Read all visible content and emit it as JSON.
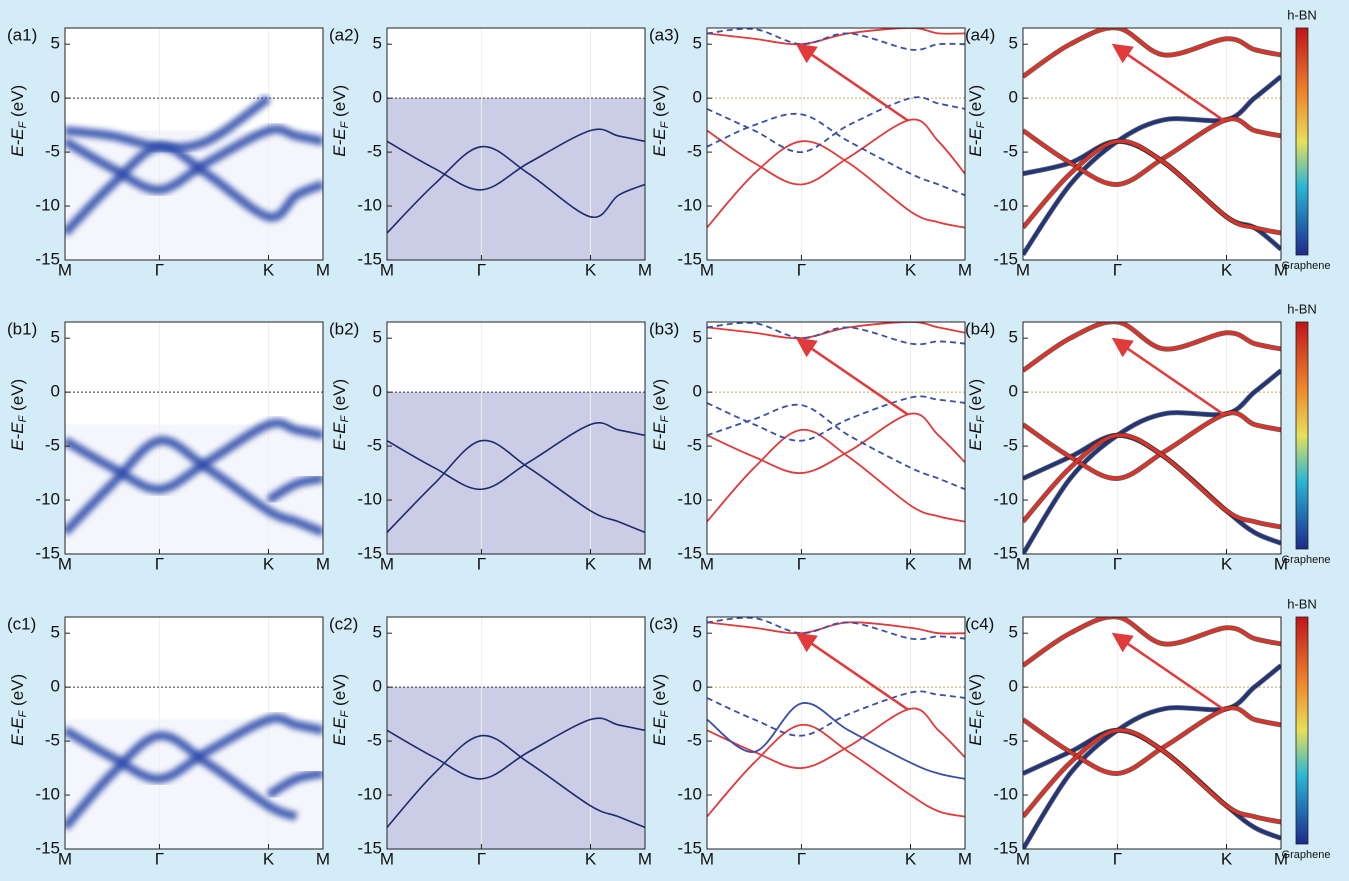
{
  "chart_data": [
    {
      "type": "spectral",
      "label": "(a1)",
      "ylabel": {
        "main": "E-E",
        "sub": "F",
        "unit": " (eV)"
      },
      "x": [
        0,
        0.5,
        1,
        1.5,
        2.155,
        2.45,
        2.732
      ],
      "xlim": [
        0,
        2.732
      ],
      "xticks": [
        {
          "value": 0,
          "label": "M"
        },
        {
          "value": 1,
          "label": "Γ"
        },
        {
          "value": 2.155,
          "label": "K"
        },
        {
          "value": 2.732,
          "label": "M"
        }
      ],
      "ylim": [
        -15,
        6.5
      ],
      "yticks": [
        5,
        0,
        -5,
        -10,
        -15
      ],
      "hline": 0,
      "series": [
        {
          "color": "#2c4aa8",
          "values": [
            -4,
            -6.5,
            -8.5,
            -6,
            -3,
            -3.5,
            -4
          ]
        },
        {
          "color": "#2c4aa8",
          "values": [
            -12.5,
            -8,
            -4.5,
            -7,
            -11,
            -9,
            -8
          ]
        },
        {
          "color": "#2c4aa8",
          "values": [
            -3,
            -3.5,
            -4.5,
            -4,
            0,
            null,
            null
          ]
        }
      ]
    },
    {
      "type": "derivative",
      "label": "(a2)",
      "ylabel": {
        "main": "E-E",
        "sub": "F",
        "unit": " (eV)"
      },
      "x": [
        0,
        0.5,
        1,
        1.5,
        2.155,
        2.45,
        2.732
      ],
      "xlim": [
        0,
        2.732
      ],
      "xticks": [
        {
          "value": 0,
          "label": "M"
        },
        {
          "value": 1,
          "label": "Γ"
        },
        {
          "value": 2.155,
          "label": "K"
        },
        {
          "value": 2.732,
          "label": "M"
        }
      ],
      "ylim": [
        -15,
        6.5
      ],
      "yticks": [
        5,
        0,
        -5,
        -10,
        -15
      ],
      "hline": 0,
      "series": [
        {
          "color": "#1e2a6e",
          "values": [
            -4,
            -6.5,
            -8.5,
            -6,
            -3,
            -3.5,
            -4
          ]
        },
        {
          "color": "#1e2a6e",
          "values": [
            -12.5,
            -8,
            -4.5,
            -7,
            -11,
            -9,
            -8
          ]
        }
      ]
    },
    {
      "type": "line",
      "label": "(a3)",
      "ylabel": {
        "main": "E-E",
        "sub": "F",
        "unit": " (eV)"
      },
      "x": [
        0,
        0.5,
        1,
        1.5,
        2.155,
        2.45,
        2.732
      ],
      "xlim": [
        0,
        2.732
      ],
      "xticks": [
        {
          "value": 0,
          "label": "M"
        },
        {
          "value": 1,
          "label": "Γ"
        },
        {
          "value": 2.155,
          "label": "K"
        },
        {
          "value": 2.732,
          "label": "M"
        }
      ],
      "ylim": [
        -15,
        6.5
      ],
      "yticks": [
        5,
        0,
        -5,
        -10,
        -15
      ],
      "hline": 0,
      "series": [
        {
          "color": "#e03a3a",
          "values": [
            -3,
            -6,
            -8,
            -5.5,
            -2,
            -4,
            -7
          ]
        },
        {
          "color": "#e03a3a",
          "values": [
            -12,
            -7,
            -4,
            -6,
            -10.5,
            -11.5,
            -12
          ]
        },
        {
          "color": "#e03a3a",
          "values": [
            6,
            5.5,
            5,
            6,
            6.5,
            6,
            6
          ]
        },
        {
          "color": "#3a4fa8",
          "dash": true,
          "values": [
            -1,
            -3,
            -5,
            -2.5,
            0,
            -0.5,
            -1
          ]
        },
        {
          "color": "#3a4fa8",
          "dash": true,
          "values": [
            -4.5,
            -2.5,
            -1.5,
            -4,
            -7,
            -8,
            -9
          ]
        },
        {
          "color": "#3a4fa8",
          "dash": true,
          "values": [
            6,
            6.4,
            5,
            6,
            4.5,
            5,
            5
          ]
        }
      ]
    },
    {
      "type": "line",
      "label": "(a4)",
      "ylabel": {
        "main": "E-E",
        "sub": "F",
        "unit": " (eV)"
      },
      "x": [
        0,
        0.5,
        1,
        1.5,
        2.155,
        2.45,
        2.732
      ],
      "xlim": [
        0,
        2.732
      ],
      "xticks": [
        {
          "value": 0,
          "label": "M"
        },
        {
          "value": 1,
          "label": "Γ"
        },
        {
          "value": 2.155,
          "label": "K"
        },
        {
          "value": 2.732,
          "label": "M"
        }
      ],
      "ylim": [
        -15,
        6.5
      ],
      "yticks": [
        5,
        0,
        -5,
        -10,
        -15
      ],
      "hline": 0,
      "colorbar": {
        "top": "h-BN",
        "bottom": "Graphene"
      },
      "series": [
        {
          "color": "#23357a",
          "values": [
            -7,
            -6,
            -4,
            -6,
            -11,
            -12,
            -14
          ]
        },
        {
          "color": "#23357a",
          "values": [
            -14.5,
            -8,
            -4,
            -2,
            -2,
            0,
            2
          ]
        },
        {
          "color": "#d9342a",
          "values": [
            -3,
            -6,
            -8,
            -5.5,
            -2,
            -3,
            -3.5
          ]
        },
        {
          "color": "#d9342a",
          "values": [
            -12,
            -7,
            -4,
            -6,
            -11,
            -12,
            -12.5
          ]
        },
        {
          "color": "#d9342a",
          "values": [
            2,
            5,
            6.5,
            4,
            5.5,
            4.5,
            4
          ]
        }
      ]
    },
    {
      "type": "spectral",
      "label": "(b1)",
      "ylabel": {
        "main": "E-E",
        "sub": "F",
        "unit": " (eV)"
      },
      "x": [
        0,
        0.5,
        1,
        1.5,
        2.155,
        2.45,
        2.732
      ],
      "xlim": [
        0,
        2.732
      ],
      "xticks": [
        {
          "value": 0,
          "label": "M"
        },
        {
          "value": 1,
          "label": "Γ"
        },
        {
          "value": 2.155,
          "label": "K"
        },
        {
          "value": 2.732,
          "label": "M"
        }
      ],
      "ylim": [
        -15,
        6.5
      ],
      "yticks": [
        5,
        0,
        -5,
        -10,
        -15
      ],
      "hline": 0,
      "series": [
        {
          "color": "#2c4aa8",
          "values": [
            -4.5,
            -7,
            -9,
            -6.5,
            -3,
            -3.5,
            -4
          ]
        },
        {
          "color": "#2c4aa8",
          "values": [
            -13,
            -8.5,
            -4.5,
            -7,
            -11,
            -12,
            -13
          ]
        },
        {
          "color": "#2c4aa8",
          "values": [
            null,
            null,
            null,
            null,
            -10,
            -8.5,
            -8
          ]
        }
      ]
    },
    {
      "type": "derivative",
      "label": "(b2)",
      "ylabel": {
        "main": "E-E",
        "sub": "F",
        "unit": " (eV)"
      },
      "x": [
        0,
        0.5,
        1,
        1.5,
        2.155,
        2.45,
        2.732
      ],
      "xlim": [
        0,
        2.732
      ],
      "xticks": [
        {
          "value": 0,
          "label": "M"
        },
        {
          "value": 1,
          "label": "Γ"
        },
        {
          "value": 2.155,
          "label": "K"
        },
        {
          "value": 2.732,
          "label": "M"
        }
      ],
      "ylim": [
        -15,
        6.5
      ],
      "yticks": [
        5,
        0,
        -5,
        -10,
        -15
      ],
      "hline": 0,
      "series": [
        {
          "color": "#1e2a6e",
          "values": [
            -4.5,
            -7,
            -9,
            -6.5,
            -3,
            -3.5,
            -4
          ]
        },
        {
          "color": "#1e2a6e",
          "values": [
            -13,
            -8.5,
            -4.5,
            -7,
            -11,
            -12,
            -13
          ]
        }
      ]
    },
    {
      "type": "line",
      "label": "(b3)",
      "ylabel": {
        "main": "E-E",
        "sub": "F",
        "unit": " (eV)"
      },
      "x": [
        0,
        0.5,
        1,
        1.5,
        2.155,
        2.45,
        2.732
      ],
      "xlim": [
        0,
        2.732
      ],
      "xticks": [
        {
          "value": 0,
          "label": "M"
        },
        {
          "value": 1,
          "label": "Γ"
        },
        {
          "value": 2.155,
          "label": "K"
        },
        {
          "value": 2.732,
          "label": "M"
        }
      ],
      "ylim": [
        -15,
        6.5
      ],
      "yticks": [
        5,
        0,
        -5,
        -10,
        -15
      ],
      "hline": 0,
      "series": [
        {
          "color": "#e03a3a",
          "values": [
            -4,
            -6,
            -7.5,
            -5.5,
            -2,
            -4,
            -6.5
          ]
        },
        {
          "color": "#e03a3a",
          "values": [
            -12,
            -7,
            -3.5,
            -6,
            -10.5,
            -11.5,
            -12
          ]
        },
        {
          "color": "#e03a3a",
          "values": [
            6,
            5.5,
            5,
            6,
            6.5,
            6,
            5.5
          ]
        },
        {
          "color": "#3a4fa8",
          "dash": true,
          "values": [
            -1,
            -3,
            -4.5,
            -2.5,
            -0.5,
            -0.7,
            -1
          ]
        },
        {
          "color": "#3a4fa8",
          "dash": true,
          "values": [
            -4,
            -2.5,
            -1.2,
            -4,
            -7,
            -8,
            -9
          ]
        },
        {
          "color": "#3a4fa8",
          "dash": true,
          "values": [
            6,
            6.4,
            5,
            6,
            4.5,
            4.7,
            4.5
          ]
        }
      ]
    },
    {
      "type": "line",
      "label": "(b4)",
      "ylabel": {
        "main": "E-E",
        "sub": "F",
        "unit": " (eV)"
      },
      "x": [
        0,
        0.5,
        1,
        1.5,
        2.155,
        2.45,
        2.732
      ],
      "xlim": [
        0,
        2.732
      ],
      "xticks": [
        {
          "value": 0,
          "label": "M"
        },
        {
          "value": 1,
          "label": "Γ"
        },
        {
          "value": 2.155,
          "label": "K"
        },
        {
          "value": 2.732,
          "label": "M"
        }
      ],
      "ylim": [
        -15,
        6.5
      ],
      "yticks": [
        5,
        0,
        -5,
        -10,
        -15
      ],
      "hline": 0,
      "colorbar": {
        "top": "h-BN",
        "bottom": "Graphene"
      },
      "series": [
        {
          "color": "#23357a",
          "values": [
            -8,
            -6,
            -4,
            -6,
            -11,
            -13,
            -14
          ]
        },
        {
          "color": "#23357a",
          "values": [
            -15,
            -8,
            -4,
            -2,
            -2,
            0,
            2
          ]
        },
        {
          "color": "#d9342a",
          "values": [
            -3,
            -6,
            -8,
            -5.5,
            -2,
            -3,
            -3.5
          ]
        },
        {
          "color": "#d9342a",
          "values": [
            -12,
            -7,
            -4,
            -6,
            -11,
            -12,
            -12.5
          ]
        },
        {
          "color": "#d9342a",
          "values": [
            2,
            5,
            6.5,
            4,
            5.5,
            4.5,
            4
          ]
        }
      ]
    },
    {
      "type": "spectral",
      "label": "(c1)",
      "ylabel": {
        "main": "E-E",
        "sub": "F",
        "unit": " (eV)"
      },
      "x": [
        0,
        0.5,
        1,
        1.5,
        2.155,
        2.45,
        2.732
      ],
      "xlim": [
        0,
        2.732
      ],
      "xticks": [
        {
          "value": 0,
          "label": "M"
        },
        {
          "value": 1,
          "label": "Γ"
        },
        {
          "value": 2.155,
          "label": "K"
        },
        {
          "value": 2.732,
          "label": "M"
        }
      ],
      "ylim": [
        -15,
        6.5
      ],
      "yticks": [
        5,
        0,
        -5,
        -10,
        -15
      ],
      "hline": 0,
      "series": [
        {
          "color": "#2c4aa8",
          "values": [
            -4,
            -6.5,
            -8.5,
            -6,
            -3,
            -3.5,
            -4
          ]
        },
        {
          "color": "#2c4aa8",
          "values": [
            -13,
            -8,
            -4.5,
            -7,
            -11,
            -12,
            null
          ]
        },
        {
          "color": "#2c4aa8",
          "values": [
            null,
            null,
            null,
            null,
            -10,
            -8.5,
            -8
          ]
        }
      ]
    },
    {
      "type": "derivative",
      "label": "(c2)",
      "ylabel": {
        "main": "E-E",
        "sub": "F",
        "unit": " (eV)"
      },
      "x": [
        0,
        0.5,
        1,
        1.5,
        2.155,
        2.45,
        2.732
      ],
      "xlim": [
        0,
        2.732
      ],
      "xticks": [
        {
          "value": 0,
          "label": "M"
        },
        {
          "value": 1,
          "label": "Γ"
        },
        {
          "value": 2.155,
          "label": "K"
        },
        {
          "value": 2.732,
          "label": "M"
        }
      ],
      "ylim": [
        -15,
        6.5
      ],
      "yticks": [
        5,
        0,
        -5,
        -10,
        -15
      ],
      "hline": 0,
      "series": [
        {
          "color": "#1e2a6e",
          "values": [
            -4,
            -6.5,
            -8.5,
            -6,
            -3,
            -3.5,
            -4
          ]
        },
        {
          "color": "#1e2a6e",
          "values": [
            -13,
            -8,
            -4.5,
            -7,
            -11,
            -12,
            -13
          ]
        }
      ]
    },
    {
      "type": "line",
      "label": "(c3)",
      "ylabel": {
        "main": "E-E",
        "sub": "F",
        "unit": " (eV)"
      },
      "x": [
        0,
        0.5,
        1,
        1.5,
        2.155,
        2.45,
        2.732
      ],
      "xlim": [
        0,
        2.732
      ],
      "xticks": [
        {
          "value": 0,
          "label": "M"
        },
        {
          "value": 1,
          "label": "Γ"
        },
        {
          "value": 2.155,
          "label": "K"
        },
        {
          "value": 2.732,
          "label": "M"
        }
      ],
      "ylim": [
        -15,
        6.5
      ],
      "yticks": [
        5,
        0,
        -5,
        -10,
        -15
      ],
      "hline": 0,
      "series": [
        {
          "color": "#e03a3a",
          "values": [
            -4,
            -6,
            -7.5,
            -5.5,
            -2,
            -4,
            -6.5
          ]
        },
        {
          "color": "#e03a3a",
          "values": [
            -12,
            -7,
            -3.5,
            -6,
            -10,
            -11.5,
            -12
          ]
        },
        {
          "color": "#e03a3a",
          "values": [
            6,
            5.5,
            5,
            6,
            5.5,
            5,
            5
          ]
        },
        {
          "color": "#3a4fa8",
          "values": [
            -3,
            -6,
            -1.5,
            -4,
            -7,
            -8,
            -8.5
          ]
        },
        {
          "color": "#3a4fa8",
          "dash": true,
          "values": [
            -1,
            -3,
            -4.5,
            -2.5,
            -0.5,
            -0.7,
            -1
          ]
        },
        {
          "color": "#3a4fa8",
          "dash": true,
          "values": [
            6,
            6.4,
            5,
            6,
            4.5,
            4.7,
            4.5
          ]
        }
      ]
    },
    {
      "type": "line",
      "label": "(c4)",
      "ylabel": {
        "main": "E-E",
        "sub": "F",
        "unit": " (eV)"
      },
      "x": [
        0,
        0.5,
        1,
        1.5,
        2.155,
        2.45,
        2.732
      ],
      "xlim": [
        0,
        2.732
      ],
      "xticks": [
        {
          "value": 0,
          "label": "M"
        },
        {
          "value": 1,
          "label": "Γ"
        },
        {
          "value": 2.155,
          "label": "K"
        },
        {
          "value": 2.732,
          "label": "M"
        }
      ],
      "ylim": [
        -15,
        6.5
      ],
      "yticks": [
        5,
        0,
        -5,
        -10,
        -15
      ],
      "hline": 0,
      "colorbar": {
        "top": "h-BN",
        "bottom": "Graphene"
      },
      "series": [
        {
          "color": "#23357a",
          "values": [
            -8,
            -6,
            -4,
            -6,
            -11,
            -13,
            -14
          ]
        },
        {
          "color": "#23357a",
          "values": [
            -15,
            -8,
            -4,
            -2,
            -2,
            0,
            2
          ]
        },
        {
          "color": "#d9342a",
          "values": [
            -3,
            -6,
            -8,
            -5.5,
            -2,
            -3,
            -3.5
          ]
        },
        {
          "color": "#d9342a",
          "values": [
            -12,
            -7,
            -4,
            -6,
            -11,
            -12,
            -12.5
          ]
        },
        {
          "color": "#d9342a",
          "values": [
            2,
            5,
            6.5,
            4,
            5.5,
            4.5,
            4
          ]
        }
      ]
    }
  ]
}
